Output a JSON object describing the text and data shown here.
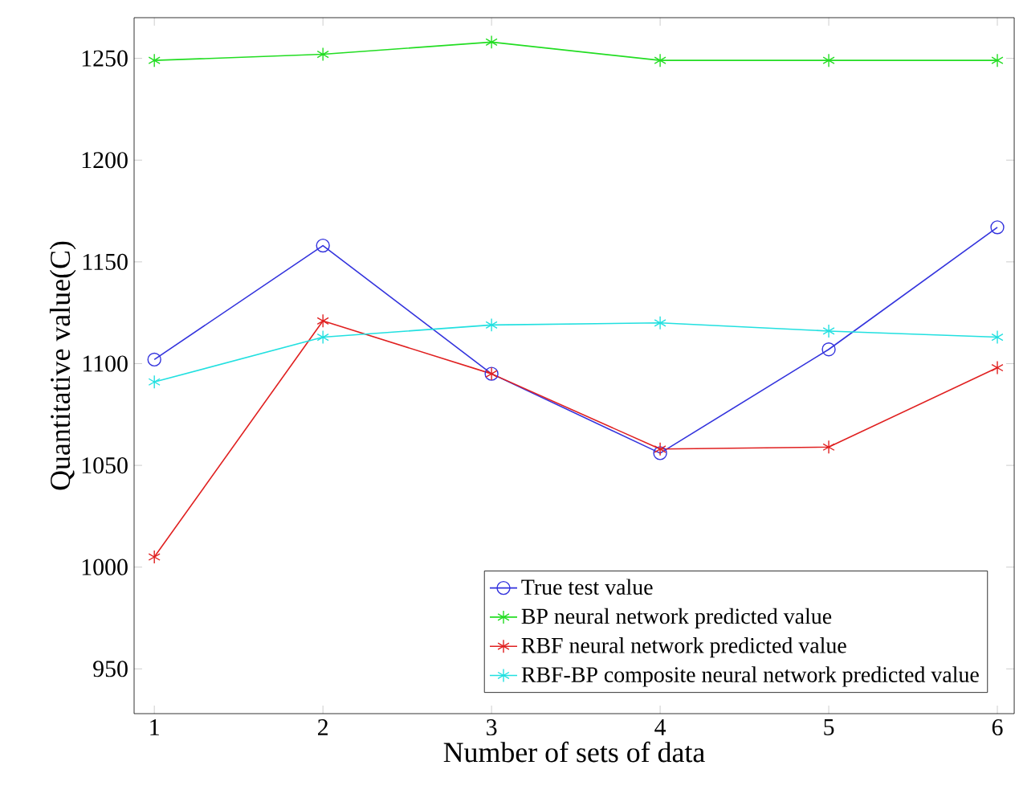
{
  "chart_data": {
    "type": "line",
    "xlabel": "Number of sets of data",
    "ylabel": "Quantitative value(C)",
    "x": [
      1,
      2,
      3,
      4,
      5,
      6
    ],
    "xlim": [
      0.88,
      6.1
    ],
    "ylim": [
      928,
      1270
    ],
    "xticks": [
      1,
      2,
      3,
      4,
      5,
      6
    ],
    "yticks": [
      950,
      1000,
      1050,
      1100,
      1150,
      1200,
      1250
    ],
    "grid": false,
    "legend": "bottom right",
    "series": [
      {
        "name": "True test value",
        "color": "#3333dd",
        "marker": "circle",
        "values": [
          1102,
          1158,
          1095,
          1056,
          1107,
          1167
        ]
      },
      {
        "name": "BP neural network predicted value",
        "color": "#22dd22",
        "marker": "cross",
        "values": [
          1249,
          1252,
          1258,
          1249,
          1249,
          1249
        ]
      },
      {
        "name": "RBF neural network predicted value",
        "color": "#e02020",
        "marker": "cross",
        "values": [
          1005,
          1121,
          1095,
          1058,
          1059,
          1098
        ]
      },
      {
        "name": "RBF-BP composite neural network predicted value",
        "color": "#22e0e0",
        "marker": "cross",
        "values": [
          1091,
          1113,
          1119,
          1120,
          1116,
          1113
        ]
      }
    ]
  }
}
